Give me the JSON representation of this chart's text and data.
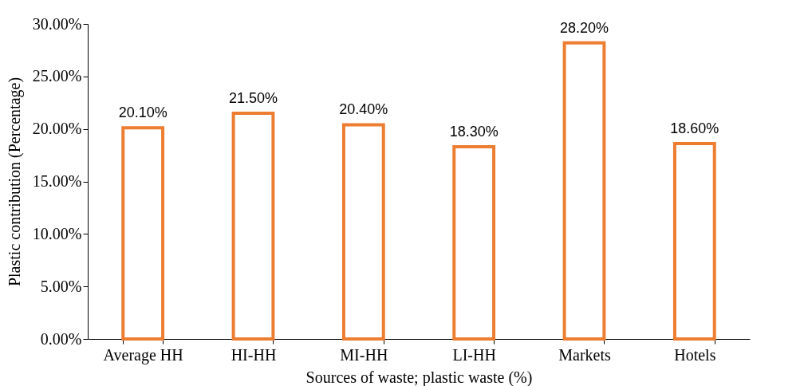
{
  "chart_data": {
    "type": "bar",
    "xlabel": "Sources of waste; plastic waste (%)",
    "ylabel": "Plastic contribution (Percentage)",
    "categories": [
      "Average HH",
      "HI-HH",
      "MI-HH",
      "LI-HH",
      "Markets",
      "Hotels"
    ],
    "values": [
      20.1,
      21.5,
      20.4,
      18.3,
      28.2,
      18.6
    ],
    "value_labels": [
      "20.10%",
      "21.50%",
      "20.40%",
      "18.30%",
      "28.20%",
      "18.60%"
    ],
    "color": "#ed7d31",
    "ylim": [
      0,
      30
    ],
    "yticks": [
      {
        "value": 0,
        "label": "0.00%"
      },
      {
        "value": 5,
        "label": "5.00%"
      },
      {
        "value": 10,
        "label": "10.00%"
      },
      {
        "value": 15,
        "label": "15.00%"
      },
      {
        "value": 20,
        "label": "20.00%"
      },
      {
        "value": 25,
        "label": "25.00%"
      },
      {
        "value": 30,
        "label": "30.00%"
      }
    ]
  }
}
